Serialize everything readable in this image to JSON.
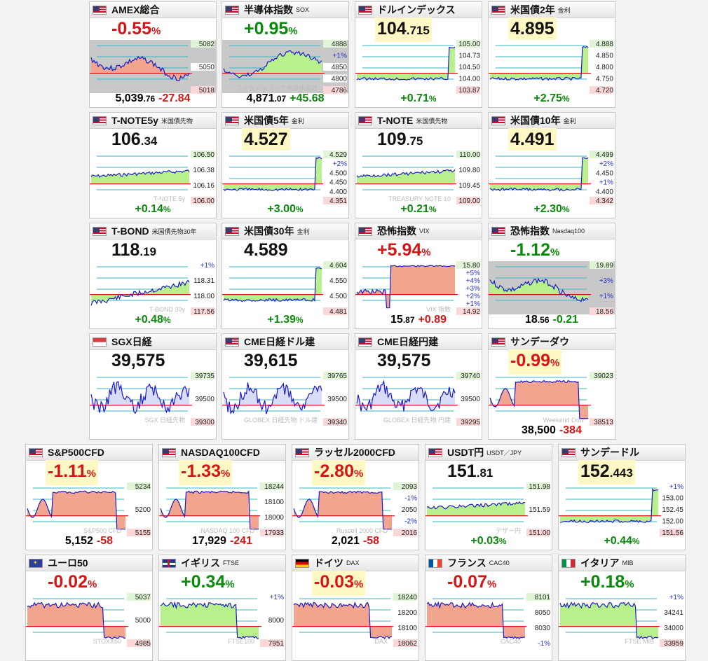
{
  "cards": [
    {
      "name": "AMEX総合",
      "sub": "",
      "flag": "us",
      "big": "-0.55",
      "big_unit": "%",
      "big_color": "down",
      "big_highlight": false,
      "ticks": [
        "5082",
        "5050",
        "5018"
      ],
      "wm": "",
      "foot_value": "5,039",
      "foot_dec": ".76",
      "foot_change": "-27.84",
      "foot_change_color": "down",
      "trend": "down",
      "shaded": true
    },
    {
      "name": "半導体指数",
      "sub": "SOX",
      "flag": "us",
      "big": "+0.95",
      "big_unit": "%",
      "big_color": "up",
      "big_highlight": false,
      "ticks": [
        "4888",
        "+1%",
        "4850",
        "4800",
        "4786"
      ],
      "wm": "フィラデルフィア半導体指数",
      "foot_value": "4,871",
      "foot_dec": ".07",
      "foot_change": "+45.68",
      "foot_change_color": "up",
      "trend": "up",
      "shaded": true
    },
    {
      "name": "ドルインデックス",
      "sub": "",
      "flag": "us",
      "big": "104",
      "big_dec": ".715",
      "big_color": "plain",
      "big_highlight": true,
      "ticks": [
        "105.00",
        "104.73",
        "104.50",
        "104.00",
        "103.87"
      ],
      "wm": "",
      "foot_value": "+0.71",
      "foot_unit": "%",
      "foot_color": "green",
      "trend": "jump"
    },
    {
      "name": "米国債2年",
      "sub": "金利",
      "flag": "us",
      "big": "4.895",
      "big_color": "plain",
      "big_highlight": true,
      "ticks": [
        "4.888",
        "4.850",
        "4.800",
        "4.750",
        "4.720"
      ],
      "wm": "",
      "foot_value": "+2.75",
      "foot_unit": "%",
      "foot_color": "green",
      "trend": "jump"
    },
    {
      "name": "T-NOTE5y",
      "sub": "米国債先物",
      "flag": "us",
      "big": "106",
      "big_dec": ".34",
      "big_color": "plain",
      "big_highlight": false,
      "ticks": [
        "106.50",
        "106.38",
        "106.16",
        "106.00"
      ],
      "wm": "T-NOTE 5y",
      "foot_value": "+0.14",
      "foot_unit": "%",
      "foot_color": "green",
      "trend": "flatup"
    },
    {
      "name": "米国債5年",
      "sub": "金利",
      "flag": "us",
      "big": "4.527",
      "big_color": "plain",
      "big_highlight": true,
      "ticks": [
        "4.529",
        "+2%",
        "4.500",
        "4.450",
        "4.400",
        "4.351"
      ],
      "wm": "",
      "foot_value": "+3.00",
      "foot_unit": "%",
      "foot_color": "green",
      "trend": "jump"
    },
    {
      "name": "T-NOTE",
      "sub": "米国債先物",
      "flag": "us",
      "big": "109",
      "big_dec": ".75",
      "big_color": "plain",
      "big_highlight": false,
      "ticks": [
        "110.00",
        "109.80",
        "109.45",
        "109.00"
      ],
      "wm": "TREASURY NOTE 10",
      "foot_value": "+0.21",
      "foot_unit": "%",
      "foot_color": "green",
      "trend": "flatup"
    },
    {
      "name": "米国債10年",
      "sub": "金利",
      "flag": "us",
      "big": "4.491",
      "big_color": "plain",
      "big_highlight": true,
      "ticks": [
        "4.499",
        "+2%",
        "4.450",
        "+1%",
        "4.400",
        "4.342"
      ],
      "wm": "",
      "foot_value": "+2.30",
      "foot_unit": "%",
      "foot_color": "green",
      "trend": "jump"
    },
    {
      "name": "T-BOND",
      "sub": "米国債先物30年",
      "flag": "us",
      "big": "118",
      "big_dec": ".19",
      "big_color": "plain",
      "big_highlight": false,
      "ticks": [
        "+1%",
        "118.31",
        "118.00",
        "117.56"
      ],
      "wm": "T-BOND 30y",
      "foot_value": "+0.48",
      "foot_unit": "%",
      "foot_color": "green",
      "trend": "rise"
    },
    {
      "name": "米国債30年",
      "sub": "金利",
      "flag": "us",
      "big": "4.589",
      "big_color": "plain",
      "big_highlight": false,
      "ticks": [
        "4.604",
        "4.550",
        "4.500",
        "4.481"
      ],
      "wm": "",
      "foot_value": "+1.39",
      "foot_unit": "%",
      "foot_color": "green",
      "trend": "jump"
    },
    {
      "name": "恐怖指数",
      "sub": "VIX",
      "flag": "us",
      "big": "+5.94",
      "big_unit": "%",
      "big_color": "down",
      "big_highlight": false,
      "ticks": [
        "15.80",
        "+5%",
        "+4%",
        "+3%",
        "+2%",
        "+1%",
        "14.92"
      ],
      "wm": "VIX 指数",
      "foot_value": "15",
      "foot_dec": ".87",
      "foot_change": "+0.89",
      "foot_change_color": "down",
      "trend": "spike"
    },
    {
      "name": "恐怖指数",
      "sub": "Nasdaq100",
      "flag": "us",
      "big": "-1.12",
      "big_unit": "%",
      "big_color": "up",
      "big_highlight": false,
      "ticks": [
        "19.89",
        "+3%",
        "+1%",
        "18.56"
      ],
      "wm": "",
      "foot_value": "18",
      "foot_dec": ".56",
      "foot_change": "-0.21",
      "foot_change_color": "up",
      "trend": "down",
      "shaded": true
    },
    {
      "name": "SGX日経",
      "sub": "",
      "flag": "sg",
      "big": "39,575",
      "big_color": "plain",
      "big_highlight": false,
      "ticks": [
        "39735",
        "39500",
        "39300"
      ],
      "wm": "SGX 日経先物",
      "foot_value": "",
      "trend": "nikkei"
    },
    {
      "name": "CME日経ドル建",
      "sub": "",
      "flag": "us",
      "big": "39,615",
      "big_color": "plain",
      "big_highlight": false,
      "ticks": [
        "39765",
        "39500",
        "39340"
      ],
      "wm": "GLOBEX 日経先物 ドル建",
      "foot_value": "",
      "trend": "nikkei"
    },
    {
      "name": "CME日経円建",
      "sub": "",
      "flag": "us",
      "big": "39,575",
      "big_color": "plain",
      "big_highlight": false,
      "ticks": [
        "39740",
        "39500",
        "39295"
      ],
      "wm": "GLOBEX 日経先物 円建",
      "foot_value": "",
      "trend": "nikkei"
    },
    {
      "name": "サンデーダウ",
      "sub": "",
      "flag": "us",
      "big": "-0.99",
      "big_unit": "%",
      "big_color": "down",
      "big_highlight": true,
      "ticks": [
        "39023",
        "38513"
      ],
      "wm": "Weekend Dow",
      "foot_value": "38,500",
      "foot_change": "-384",
      "foot_change_color": "down",
      "trend": "drop"
    },
    {
      "name": "S&P500CFD",
      "sub": "",
      "flag": "us",
      "big": "-1.11",
      "big_unit": "%",
      "big_color": "down",
      "big_highlight": true,
      "ticks": [
        "5234",
        "5200",
        "5155"
      ],
      "wm": "S&P500 CFD",
      "foot_value": "5,152",
      "foot_change": "-58",
      "foot_change_color": "down",
      "trend": "drop"
    },
    {
      "name": "NASDAQ100CFD",
      "sub": "",
      "flag": "us",
      "big": "-1.33",
      "big_unit": "%",
      "big_color": "down",
      "big_highlight": true,
      "ticks": [
        "18244",
        "18100",
        "18000",
        "17933"
      ],
      "wm": "NASDAQ 100 CFD",
      "foot_value": "17,929",
      "foot_change": "-241",
      "foot_change_color": "down",
      "trend": "drop"
    },
    {
      "name": "ラッセル2000CFD",
      "sub": "",
      "flag": "us",
      "big": "-2.80",
      "big_unit": "%",
      "big_color": "down",
      "big_highlight": true,
      "ticks": [
        "2093",
        "-1%",
        "2050",
        "-2%",
        "2016"
      ],
      "wm": "Russell 2000 CFD",
      "foot_value": "2,021",
      "foot_change": "-58",
      "foot_change_color": "down",
      "trend": "drop"
    },
    {
      "name": "USDT円",
      "sub": "USDT／JPY",
      "flag": "us",
      "big": "151",
      "big_dec": ".81",
      "big_color": "plain",
      "big_highlight": false,
      "ticks": [
        "151.98",
        "151.59",
        "151.00"
      ],
      "wm": "テザー円",
      "foot_value": "+0.03",
      "foot_unit": "%",
      "foot_color": "green",
      "trend": "flatup"
    },
    {
      "name": "サンデードル",
      "sub": "",
      "flag": "us",
      "big": "152",
      "big_dec": ".443",
      "big_color": "plain",
      "big_highlight": true,
      "ticks": [
        "+1%",
        "153.00",
        "152.45",
        "152.00",
        "151.56"
      ],
      "wm": "",
      "foot_value": "+0.44",
      "foot_unit": "%",
      "foot_color": "green",
      "trend": "jump"
    },
    {
      "name": "ユーロ50",
      "sub": "",
      "flag": "eu",
      "big": "-0.02",
      "big_unit": "%",
      "big_color": "down",
      "big_highlight": false,
      "ticks": [
        "5037",
        "5000",
        "4985"
      ],
      "wm": "STOXX50",
      "foot_value": "",
      "trend": "euro"
    },
    {
      "name": "イギリス",
      "sub": "FTSE",
      "flag": "uk",
      "big": "+0.34",
      "big_unit": "%",
      "big_color": "up",
      "big_highlight": false,
      "ticks": [
        "+1%",
        "8000",
        "7951"
      ],
      "wm": "FTSE100",
      "foot_value": "",
      "trend": "euro"
    },
    {
      "name": "ドイツ",
      "sub": "DAX",
      "flag": "de",
      "big": "-0.03",
      "big_unit": "%",
      "big_color": "down",
      "big_highlight": true,
      "ticks": [
        "18240",
        "18200",
        "18100",
        "18062"
      ],
      "wm": "DAX",
      "foot_value": "",
      "trend": "euro"
    },
    {
      "name": "フランス",
      "sub": "CAC40",
      "flag": "fr",
      "big": "-0.07",
      "big_unit": "%",
      "big_color": "down",
      "big_highlight": false,
      "ticks": [
        "8101",
        "8050",
        "8030",
        "-1%"
      ],
      "wm": "CAC40",
      "foot_value": "",
      "trend": "euro"
    },
    {
      "name": "イタリア",
      "sub": "MIB",
      "flag": "it",
      "big": "+0.18",
      "big_unit": "%",
      "big_color": "up",
      "big_highlight": false,
      "ticks": [
        "+1%",
        "34241",
        "34000",
        "33959"
      ],
      "wm": "FTSE MIB",
      "foot_value": "",
      "trend": "euro"
    }
  ]
}
